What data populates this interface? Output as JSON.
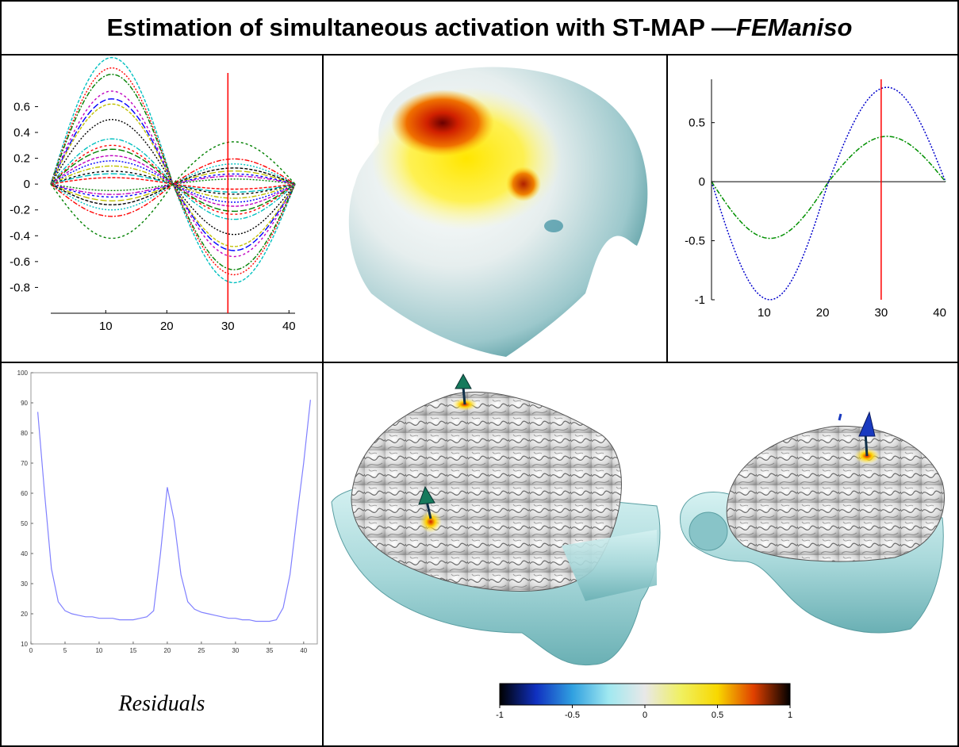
{
  "title": {
    "main": "Estimation of simultaneous activation with ST-MAP — ",
    "emphasis": "FEManiso"
  },
  "caption": "Residuals",
  "chart_data": [
    {
      "type": "line",
      "x": [
        1,
        41
      ],
      "xticks": [
        "10",
        "20",
        "30",
        "40"
      ],
      "yticks": [
        "0.6",
        "0.4",
        "0.2",
        "0",
        "-0.2",
        "-0.4",
        "-0.6",
        "-0.8"
      ],
      "xlim": [
        1,
        41
      ],
      "ylim": [
        -1,
        0.75
      ],
      "marker_x": 30,
      "series_amplitudes": [
        -0.98,
        -0.9,
        -0.85,
        -0.72,
        -0.66,
        -0.62,
        -0.5,
        -0.35,
        -0.3,
        -0.27,
        -0.22,
        -0.18,
        -0.14,
        -0.1,
        -0.08,
        -0.05,
        0.05,
        0.08,
        0.1,
        0.13,
        0.16,
        0.2,
        0.25,
        0.42
      ],
      "colors": [
        "#00c0c0",
        "#ff0000",
        "#008000",
        "#c000c0",
        "#0000ff",
        "#c0c000",
        "#000000"
      ],
      "marker_color": "#ff0000"
    },
    {
      "type": "line",
      "xticks": [
        "10",
        "20",
        "30",
        "40"
      ],
      "yticks": [
        "0.5",
        "0",
        "-0.5",
        "-1"
      ],
      "xlim": [
        1,
        41
      ],
      "ylim": [
        -1,
        0.8
      ],
      "marker_x": 30,
      "series": [
        {
          "color": "#0000cc",
          "amplitude": 1.0
        },
        {
          "color": "#009000",
          "amplitude": 0.48
        }
      ],
      "marker_color": "#ff0000"
    },
    {
      "type": "line",
      "xticks": [
        "0",
        "5",
        "10",
        "15",
        "20",
        "25",
        "30",
        "35",
        "40"
      ],
      "yticks": [
        "100",
        "90",
        "80",
        "70",
        "60",
        "50",
        "40",
        "30",
        "20",
        "10"
      ],
      "xlim": [
        0,
        42
      ],
      "ylim": [
        10,
        100
      ],
      "x": [
        1,
        2,
        3,
        4,
        5,
        6,
        7,
        8,
        9,
        10,
        11,
        12,
        13,
        14,
        15,
        16,
        17,
        18,
        19,
        20,
        21,
        22,
        23,
        24,
        25,
        26,
        27,
        28,
        29,
        30,
        31,
        32,
        33,
        34,
        35,
        36,
        37,
        38,
        39,
        40,
        41
      ],
      "y": [
        87,
        60,
        35,
        24,
        21,
        20,
        19.5,
        19,
        19,
        18.5,
        18.5,
        18.5,
        18,
        18,
        18,
        18.5,
        19,
        21,
        40,
        62,
        51,
        33,
        24,
        21.5,
        20.5,
        20,
        19.5,
        19,
        18.5,
        18.5,
        18,
        18,
        17.5,
        17.5,
        17.5,
        18,
        22,
        33,
        52,
        70,
        91
      ],
      "line_color": "#8080ff"
    }
  ],
  "colorbar": {
    "ticks": [
      "-1",
      "-0.5",
      "0",
      "0.5",
      "1"
    ],
    "stops": [
      "#000000",
      "#1030c0",
      "#30a0e0",
      "#a0e8f0",
      "#e8e8e8",
      "#f0f060",
      "#f8d800",
      "#e04000",
      "#000000"
    ]
  },
  "icons": [
    "head-heatmap-image",
    "brain-render-left-image",
    "brain-render-right-image",
    "dipole-arrow-icon"
  ]
}
